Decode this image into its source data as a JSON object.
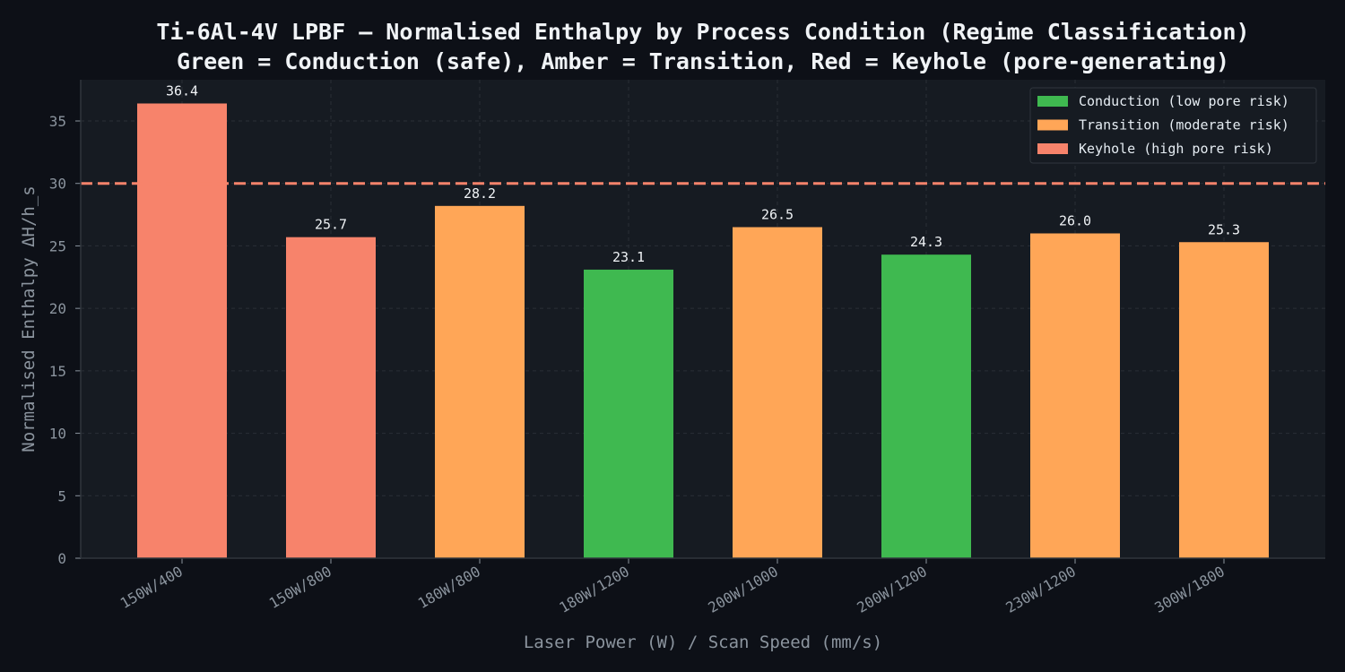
{
  "chart_data": {
    "type": "bar",
    "title_line1": "Ti-6Al-4V LPBF — Normalised Enthalpy by Process Condition (Regime Classification)",
    "title_line2": "Green = Conduction (safe), Amber = Transition, Red = Keyhole (pore-generating)",
    "xlabel": "Laser Power (W) / Scan Speed (mm/s)",
    "ylabel": "Normalised Enthalpy ΔH/h_s",
    "categories": [
      "150W/400",
      "150W/800",
      "180W/800",
      "180W/1200",
      "200W/1000",
      "200W/1200",
      "230W/1200",
      "300W/1800"
    ],
    "values": [
      36.4,
      25.7,
      28.2,
      23.1,
      26.5,
      24.3,
      26.0,
      25.3
    ],
    "value_labels": [
      "36.4",
      "25.7",
      "28.2",
      "23.1",
      "26.5",
      "24.3",
      "26.0",
      "25.3"
    ],
    "regimes": [
      "keyhole",
      "keyhole",
      "transition",
      "conduction",
      "transition",
      "conduction",
      "transition",
      "transition"
    ],
    "ylim": [
      0,
      38.3
    ],
    "yticks": [
      0,
      5,
      10,
      15,
      20,
      25,
      30,
      35
    ],
    "threshold": 30,
    "grid": true,
    "legend_position": "top-right",
    "legend": [
      {
        "label": "Conduction (low pore risk)",
        "regime": "conduction"
      },
      {
        "label": "Transition (moderate risk)",
        "regime": "transition"
      },
      {
        "label": "Keyhole (high pore risk)",
        "regime": "keyhole"
      }
    ],
    "colors": {
      "conduction": "#3fb950",
      "transition": "#ffa657",
      "keyhole": "#f7836b",
      "threshold": "#f7836b",
      "plot_bg": "#161b22",
      "page_bg": "#0d1017",
      "grid": "#2a2f37"
    }
  }
}
